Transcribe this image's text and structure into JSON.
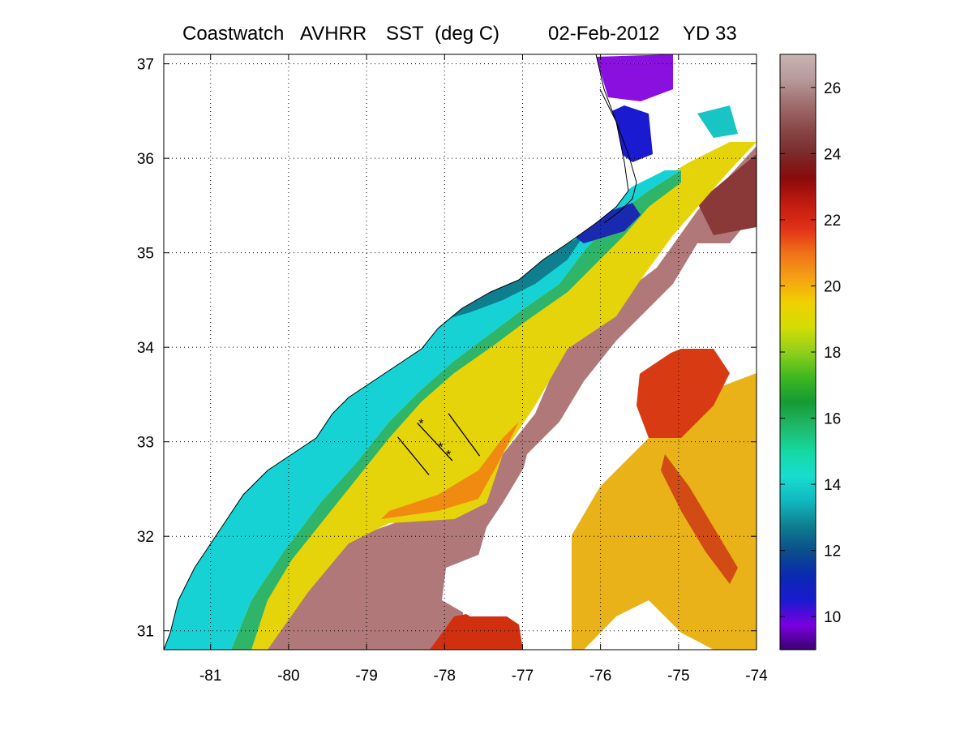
{
  "title": {
    "source": "Coastwatch",
    "sensor": "AVHRR",
    "variable": "SST",
    "units": "(deg C)",
    "date": "02-Feb-2012",
    "yearday": "YD 33"
  },
  "axes": {
    "x_ticks": [
      "-81",
      "-80",
      "-79",
      "-78",
      "-77",
      "-76",
      "-75",
      "-74"
    ],
    "x_values": [
      -81,
      -80,
      -79,
      -78,
      -77,
      -76,
      -75,
      -74
    ],
    "y_ticks": [
      "31",
      "32",
      "33",
      "34",
      "35",
      "36",
      "37"
    ],
    "y_values": [
      31,
      32,
      33,
      34,
      35,
      36,
      37
    ],
    "lon_range": [
      -81.6,
      -74
    ],
    "lat_range": [
      30.8,
      37.1
    ],
    "grid": "dotted"
  },
  "colorbar": {
    "ticks": [
      "10",
      "12",
      "14",
      "16",
      "18",
      "20",
      "22",
      "24",
      "26"
    ],
    "values": [
      10,
      12,
      14,
      16,
      18,
      20,
      22,
      24,
      26
    ],
    "range": [
      9,
      27
    ],
    "colors": [
      "#3a0070",
      "#7a00e0",
      "#1a1ad0",
      "#0a2ab0",
      "#0a4f8a",
      "#0f7f90",
      "#10b8c0",
      "#19dcd0",
      "#14d9a0",
      "#1fb86a",
      "#169a33",
      "#3fb820",
      "#8fd01a",
      "#d4dc05",
      "#f0d000",
      "#f5a014",
      "#f07018",
      "#e03018",
      "#c01a10",
      "#8a0a0a",
      "#7a2a2a",
      "#8a4848",
      "#a06e6e",
      "#b89a9a",
      "#c8b4b4"
    ]
  },
  "transects": [
    {
      "start": [
        -77.95,
        33.3
      ],
      "end": [
        -77.55,
        32.85
      ]
    },
    {
      "start": [
        -78.6,
        33.05
      ],
      "end": [
        -78.2,
        32.65
      ]
    },
    {
      "start": [
        -78.35,
        33.2
      ],
      "end": [
        -77.9,
        32.8
      ]
    }
  ],
  "stations": [
    {
      "lon": -78.3,
      "lat": 33.2
    },
    {
      "lon": -78.05,
      "lat": 32.95
    },
    {
      "lon": -77.95,
      "lat": 32.87
    }
  ]
}
